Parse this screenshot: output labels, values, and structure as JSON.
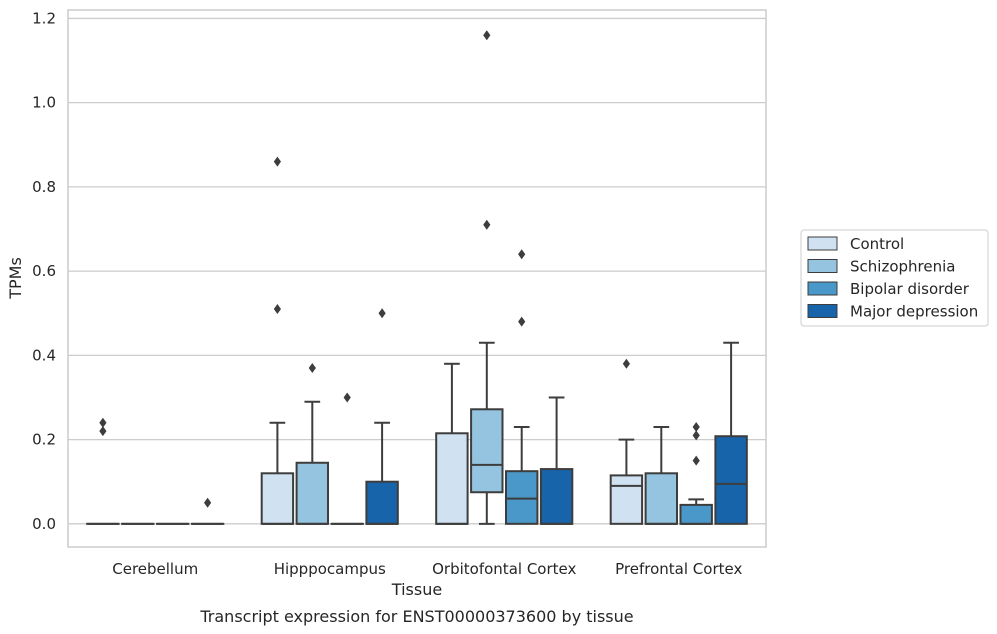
{
  "caption": "Transcript expression for ENST00000373600 by tissue",
  "colors": {
    "Control": "#d0e1f2",
    "Schizophrenia": "#94c4df",
    "Bipolar disorder": "#4a98c9",
    "Major depression": "#1764ab",
    "edge": "#3d3d3d",
    "grid": "#cccccc"
  },
  "chart_data": {
    "type": "box",
    "xlabel": "Tissue",
    "ylabel": "TPMs",
    "ylim": [
      -0.055,
      1.22
    ],
    "yticks": [
      0.0,
      0.2,
      0.4,
      0.6,
      0.8,
      1.0,
      1.2
    ],
    "ytick_labels": [
      "0.0",
      "0.2",
      "0.4",
      "0.6",
      "0.8",
      "1.0",
      "1.2"
    ],
    "grid": "horizontal",
    "legend_position": "right",
    "categories": [
      "Cerebellum",
      "Hipppocampus",
      "Orbitofontal Cortex",
      "Prefrontal Cortex"
    ],
    "series": [
      {
        "name": "Control",
        "boxes": [
          {
            "q1": 0.0,
            "median": 0.0,
            "q3": 0.0,
            "whisker_low": 0.0,
            "whisker_high": 0.0,
            "outliers": [
              0.22,
              0.24
            ]
          },
          {
            "q1": 0.0,
            "median": 0.0,
            "q3": 0.12,
            "whisker_low": 0.0,
            "whisker_high": 0.24,
            "outliers": [
              0.51,
              0.86
            ]
          },
          {
            "q1": 0.0,
            "median": 0.0,
            "q3": 0.215,
            "whisker_low": 0.0,
            "whisker_high": 0.38,
            "outliers": []
          },
          {
            "q1": 0.0,
            "median": 0.09,
            "q3": 0.115,
            "whisker_low": 0.0,
            "whisker_high": 0.2,
            "outliers": [
              0.38
            ]
          }
        ]
      },
      {
        "name": "Schizophrenia",
        "boxes": [
          {
            "q1": 0.0,
            "median": 0.0,
            "q3": 0.0,
            "whisker_low": 0.0,
            "whisker_high": 0.0,
            "outliers": []
          },
          {
            "q1": 0.0,
            "median": 0.0,
            "q3": 0.145,
            "whisker_low": 0.0,
            "whisker_high": 0.29,
            "outliers": [
              0.37
            ]
          },
          {
            "q1": 0.075,
            "median": 0.14,
            "q3": 0.272,
            "whisker_low": 0.0,
            "whisker_high": 0.43,
            "outliers": [
              0.71,
              1.16
            ]
          },
          {
            "q1": 0.0,
            "median": 0.0,
            "q3": 0.12,
            "whisker_low": 0.0,
            "whisker_high": 0.23,
            "outliers": []
          }
        ]
      },
      {
        "name": "Bipolar disorder",
        "boxes": [
          {
            "q1": 0.0,
            "median": 0.0,
            "q3": 0.0,
            "whisker_low": 0.0,
            "whisker_high": 0.0,
            "outliers": []
          },
          {
            "q1": 0.0,
            "median": 0.0,
            "q3": 0.0,
            "whisker_low": 0.0,
            "whisker_high": 0.0,
            "outliers": [
              0.3
            ]
          },
          {
            "q1": 0.0,
            "median": 0.06,
            "q3": 0.125,
            "whisker_low": 0.0,
            "whisker_high": 0.23,
            "outliers": [
              0.48,
              0.64
            ]
          },
          {
            "q1": 0.0,
            "median": 0.0,
            "q3": 0.045,
            "whisker_low": 0.0,
            "whisker_high": 0.058,
            "outliers": [
              0.15,
              0.21,
              0.23
            ]
          }
        ]
      },
      {
        "name": "Major depression",
        "boxes": [
          {
            "q1": 0.0,
            "median": 0.0,
            "q3": 0.0,
            "whisker_low": 0.0,
            "whisker_high": 0.0,
            "outliers": [
              0.05
            ]
          },
          {
            "q1": 0.0,
            "median": 0.0,
            "q3": 0.1,
            "whisker_low": 0.0,
            "whisker_high": 0.24,
            "outliers": [
              0.5
            ]
          },
          {
            "q1": 0.0,
            "median": 0.0,
            "q3": 0.13,
            "whisker_low": 0.0,
            "whisker_high": 0.3,
            "outliers": []
          },
          {
            "q1": 0.0,
            "median": 0.095,
            "q3": 0.208,
            "whisker_low": 0.0,
            "whisker_high": 0.43,
            "outliers": []
          }
        ]
      }
    ]
  }
}
